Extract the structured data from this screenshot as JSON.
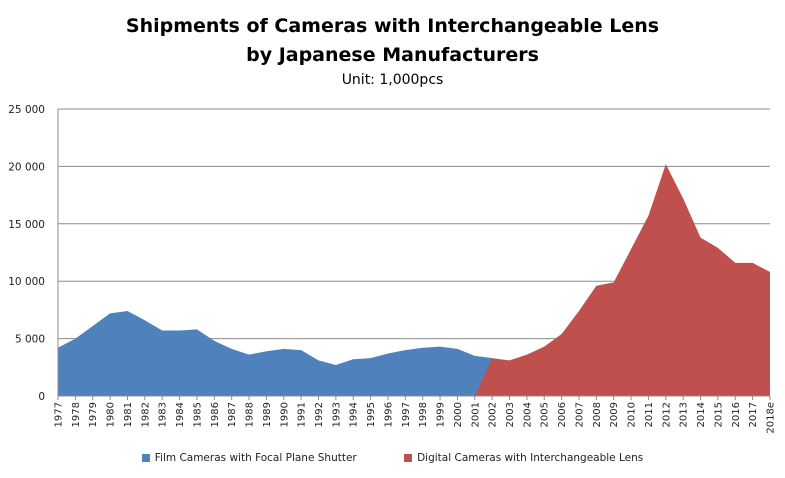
{
  "chart_data": {
    "type": "area",
    "title_line1": "Shipments of Cameras with Interchangeable Lens",
    "title_line2": "by Japanese Manufacturers",
    "subtitle": "Unit: 1,000pcs",
    "xlabel": "",
    "ylabel": "",
    "ylim": [
      0,
      25000
    ],
    "yticks": [
      0,
      5000,
      10000,
      15000,
      20000,
      25000
    ],
    "ytick_labels": [
      "0",
      "5 000",
      "10 000",
      "15 000",
      "20 000",
      "25 000"
    ],
    "grid": true,
    "legend_position": "bottom",
    "categories": [
      "1977",
      "1978",
      "1979",
      "1980",
      "1981",
      "1982",
      "1983",
      "1984",
      "1985",
      "1986",
      "1987",
      "1988",
      "1989",
      "1990",
      "1991",
      "1992",
      "1993",
      "1994",
      "1995",
      "1996",
      "1997",
      "1998",
      "1999",
      "2000",
      "2001",
      "2002",
      "2003",
      "2004",
      "2005",
      "2006",
      "2007",
      "2008",
      "2009",
      "2010",
      "2011",
      "2012",
      "2013",
      "2014",
      "2015",
      "2016",
      "2017",
      "2018e"
    ],
    "series": [
      {
        "name": "Film Cameras with Focal Plane Shutter",
        "color": "#4f81bd",
        "values": [
          4200,
          5000,
          6100,
          7200,
          7400,
          6600,
          5700,
          5700,
          5800,
          4800,
          4100,
          3600,
          3900,
          4100,
          4000,
          3100,
          2700,
          3200,
          3300,
          3700,
          4000,
          4200,
          4300,
          4100,
          3500,
          3300,
          2300,
          1100,
          400,
          150,
          50,
          0,
          0,
          0,
          0,
          0,
          0,
          0,
          0,
          0,
          0,
          0
        ]
      },
      {
        "name": "Digital Cameras with Interchangeable Lens",
        "color": "#c0504d",
        "values": [
          0,
          0,
          0,
          0,
          0,
          0,
          0,
          0,
          0,
          0,
          0,
          0,
          0,
          0,
          0,
          0,
          0,
          0,
          0,
          0,
          0,
          0,
          0,
          0,
          0,
          3300,
          3100,
          3600,
          4300,
          5400,
          7400,
          9600,
          9900,
          12800,
          15700,
          20200,
          17200,
          13800,
          12900,
          11600,
          11600,
          10800
        ]
      }
    ]
  }
}
